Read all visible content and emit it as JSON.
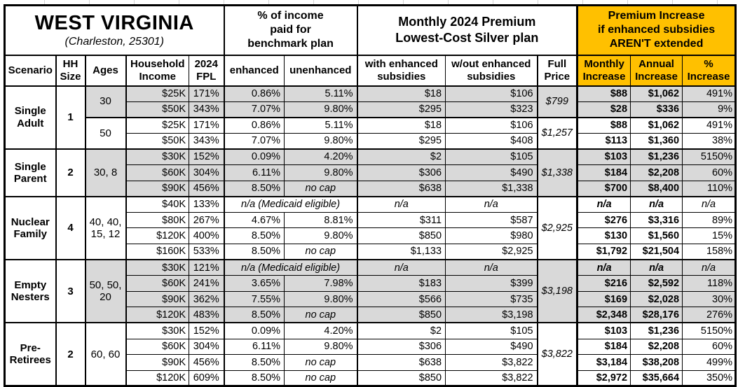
{
  "title": {
    "state": "WEST VIRGINIA",
    "location": "(Charleston, 25301)"
  },
  "colors": {
    "accent_orange": "#FFC000",
    "row_shading_gray": "#D9D9D9",
    "border": "#000000"
  },
  "header_groups": {
    "income_pct": "% of income\npaid for\nbenchmark plan",
    "premium": "Monthly 2024 Premium\nLowest-Cost Silver plan",
    "increase": "Premium Increase\nif enhanced subsidies\nAREN'T extended"
  },
  "columns": [
    "Scenario",
    "HH\nSize",
    "Ages",
    "Household\nIncome",
    "2024\nFPL",
    "enhanced",
    "unenhanced",
    "with enhanced\nsubsidies",
    "w/out enhanced\nsubsidies",
    "Full\nPrice",
    "Monthly\nIncrease",
    "Annual\nIncrease",
    "%\nIncrease"
  ],
  "medicaid_note": "n/a (Medicaid eligible)",
  "groups": [
    {
      "scenario": "Single\nAdult",
      "hh_size": "1",
      "blocks": [
        {
          "ages": "30",
          "shaded": true,
          "full_price": "$799",
          "rows": [
            {
              "income": "$25K",
              "fpl": "171%",
              "enh": "0.86%",
              "unenh": "5.11%",
              "with_sub": "$18",
              "wout_sub": "$106",
              "monthly": "$88",
              "annual": "$1,062",
              "pct": "491%"
            },
            {
              "income": "$50K",
              "fpl": "343%",
              "enh": "7.07%",
              "unenh": "9.80%",
              "with_sub": "$295",
              "wout_sub": "$323",
              "monthly": "$28",
              "annual": "$336",
              "pct": "9%"
            }
          ]
        },
        {
          "ages": "50",
          "shaded": false,
          "full_price": "$1,257",
          "rows": [
            {
              "income": "$25K",
              "fpl": "171%",
              "enh": "0.86%",
              "unenh": "5.11%",
              "with_sub": "$18",
              "wout_sub": "$106",
              "monthly": "$88",
              "annual": "$1,062",
              "pct": "491%"
            },
            {
              "income": "$50K",
              "fpl": "343%",
              "enh": "7.07%",
              "unenh": "9.80%",
              "with_sub": "$295",
              "wout_sub": "$408",
              "monthly": "$113",
              "annual": "$1,360",
              "pct": "38%"
            }
          ]
        }
      ]
    },
    {
      "scenario": "Single\nParent",
      "hh_size": "2",
      "blocks": [
        {
          "ages": "30, 8",
          "shaded": true,
          "full_price": "$1,338",
          "rows": [
            {
              "income": "$30K",
              "fpl": "152%",
              "enh": "0.09%",
              "unenh": "4.20%",
              "with_sub": "$2",
              "wout_sub": "$105",
              "monthly": "$103",
              "annual": "$1,236",
              "pct": "5150%"
            },
            {
              "income": "$60K",
              "fpl": "304%",
              "enh": "6.11%",
              "unenh": "9.80%",
              "with_sub": "$306",
              "wout_sub": "$490",
              "monthly": "$184",
              "annual": "$2,208",
              "pct": "60%"
            },
            {
              "income": "$90K",
              "fpl": "456%",
              "enh": "8.50%",
              "unenh": "no cap",
              "with_sub": "$638",
              "wout_sub": "$1,338",
              "monthly": "$700",
              "annual": "$8,400",
              "pct": "110%"
            }
          ]
        }
      ]
    },
    {
      "scenario": "Nuclear\nFamily",
      "hh_size": "4",
      "blocks": [
        {
          "ages": "40, 40,\n15, 12",
          "shaded": false,
          "full_price": "$2,925",
          "rows": [
            {
              "income": "$40K",
              "fpl": "133%",
              "medicaid": true,
              "with_sub": "n/a",
              "wout_sub": "n/a",
              "monthly": "n/a",
              "annual": "n/a",
              "pct": "n/a"
            },
            {
              "income": "$80K",
              "fpl": "267%",
              "enh": "4.67%",
              "unenh": "8.81%",
              "with_sub": "$311",
              "wout_sub": "$587",
              "monthly": "$276",
              "annual": "$3,316",
              "pct": "89%"
            },
            {
              "income": "$120K",
              "fpl": "400%",
              "enh": "8.50%",
              "unenh": "9.80%",
              "with_sub": "$850",
              "wout_sub": "$980",
              "monthly": "$130",
              "annual": "$1,560",
              "pct": "15%"
            },
            {
              "income": "$160K",
              "fpl": "533%",
              "enh": "8.50%",
              "unenh": "no cap",
              "with_sub": "$1,133",
              "wout_sub": "$2,925",
              "monthly": "$1,792",
              "annual": "$21,504",
              "pct": "158%"
            }
          ]
        }
      ]
    },
    {
      "scenario": "Empty\nNesters",
      "hh_size": "3",
      "blocks": [
        {
          "ages": "50, 50,\n20",
          "shaded": true,
          "full_price": "$3,198",
          "rows": [
            {
              "income": "$30K",
              "fpl": "121%",
              "medicaid": true,
              "with_sub": "n/a",
              "wout_sub": "n/a",
              "monthly": "n/a",
              "annual": "n/a",
              "pct": "n/a"
            },
            {
              "income": "$60K",
              "fpl": "241%",
              "enh": "3.65%",
              "unenh": "7.98%",
              "with_sub": "$183",
              "wout_sub": "$399",
              "monthly": "$216",
              "annual": "$2,592",
              "pct": "118%"
            },
            {
              "income": "$90K",
              "fpl": "362%",
              "enh": "7.55%",
              "unenh": "9.80%",
              "with_sub": "$566",
              "wout_sub": "$735",
              "monthly": "$169",
              "annual": "$2,028",
              "pct": "30%"
            },
            {
              "income": "$120K",
              "fpl": "483%",
              "enh": "8.50%",
              "unenh": "no cap",
              "with_sub": "$850",
              "wout_sub": "$3,198",
              "monthly": "$2,348",
              "annual": "$28,176",
              "pct": "276%"
            }
          ]
        }
      ]
    },
    {
      "scenario": "Pre-\nRetirees",
      "hh_size": "2",
      "blocks": [
        {
          "ages": "60, 60",
          "shaded": false,
          "full_price": "$3,822",
          "rows": [
            {
              "income": "$30K",
              "fpl": "152%",
              "enh": "0.09%",
              "unenh": "4.20%",
              "with_sub": "$2",
              "wout_sub": "$105",
              "monthly": "$103",
              "annual": "$1,236",
              "pct": "5150%"
            },
            {
              "income": "$60K",
              "fpl": "304%",
              "enh": "6.11%",
              "unenh": "9.80%",
              "with_sub": "$306",
              "wout_sub": "$490",
              "monthly": "$184",
              "annual": "$2,208",
              "pct": "60%"
            },
            {
              "income": "$90K",
              "fpl": "456%",
              "enh": "8.50%",
              "unenh": "no cap",
              "with_sub": "$638",
              "wout_sub": "$3,822",
              "monthly": "$3,184",
              "annual": "$38,208",
              "pct": "499%"
            },
            {
              "income": "$120K",
              "fpl": "609%",
              "enh": "8.50%",
              "unenh": "no cap",
              "with_sub": "$850",
              "wout_sub": "$3,822",
              "monthly": "$2,972",
              "annual": "$35,664",
              "pct": "350%"
            }
          ]
        }
      ]
    }
  ]
}
